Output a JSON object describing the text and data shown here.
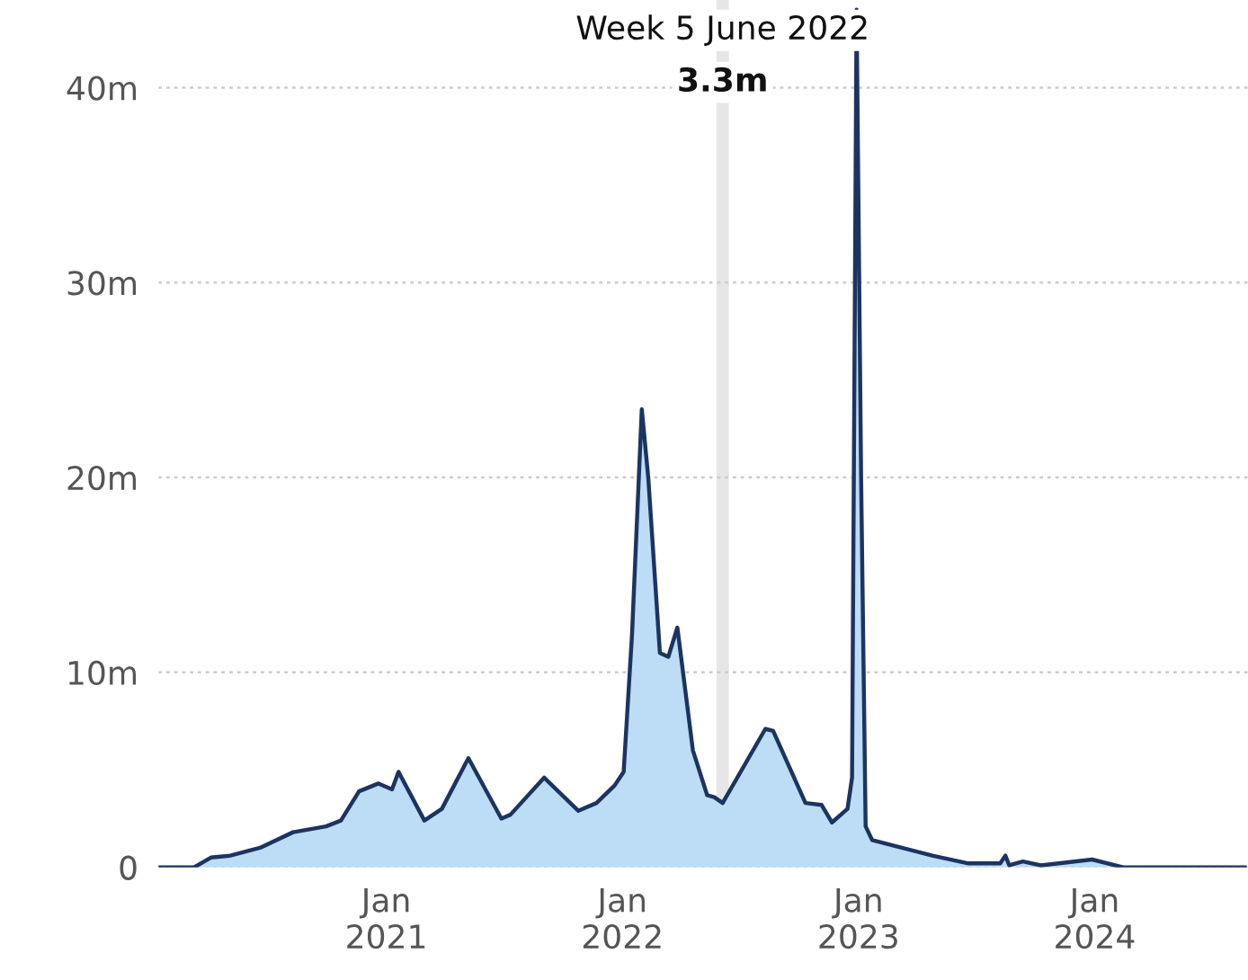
{
  "chart_data": {
    "type": "area",
    "x": [
      "2020-01-15",
      "2020-03-10",
      "2020-04-05",
      "2020-05-05",
      "2020-06-20",
      "2020-08-10",
      "2020-09-30",
      "2020-10-23",
      "2020-11-20",
      "2020-12-20",
      "2021-01-10",
      "2021-01-20",
      "2021-03-01",
      "2021-03-28",
      "2021-05-08",
      "2021-06-28",
      "2021-07-12",
      "2021-09-02",
      "2021-10-25",
      "2021-11-22",
      "2021-12-20",
      "2022-01-03",
      "2022-01-16",
      "2022-01-31",
      "2022-02-10",
      "2022-02-28",
      "2022-03-13",
      "2022-03-27",
      "2022-04-20",
      "2022-05-12",
      "2022-05-23",
      "2022-06-05",
      "2022-08-10",
      "2022-08-22",
      "2022-10-11",
      "2022-11-05",
      "2022-11-21",
      "2022-12-15",
      "2022-12-22",
      "2022-12-29",
      "2023-01-05",
      "2023-01-12",
      "2023-01-22",
      "2023-04-25",
      "2023-06-20",
      "2023-08-08",
      "2023-08-16",
      "2023-08-22",
      "2023-09-12",
      "2023-10-10",
      "2023-12-28",
      "2024-02-14",
      "2024-08-20"
    ],
    "series": [
      {
        "color": "#bddcf6",
        "values": [
          0,
          0,
          0.5,
          0.6,
          1.0,
          1.8,
          2.1,
          2.4,
          3.9,
          4.3,
          4.0,
          4.9,
          2.4,
          3.0,
          5.6,
          2.5,
          2.7,
          4.6,
          2.9,
          3.3,
          4.2,
          4.9,
          12,
          23.5,
          20,
          11,
          10.8,
          12.3,
          6,
          3.7,
          3.6,
          3.3,
          7.1,
          7.0,
          3.3,
          3.2,
          2.3,
          3.0,
          4.6,
          44,
          20,
          2.1,
          1.4,
          0.6,
          0.2,
          0.2,
          0.6,
          0.1,
          0.3,
          0.1,
          0.4,
          0,
          0
        ]
      }
    ],
    "xlim": [
      "2020-01-15",
      "2024-08-25"
    ],
    "xticks": [
      {
        "value": "2021-01-01",
        "label": "Jan\n2021"
      },
      {
        "value": "2022-01-01",
        "label": "Jan\n2022"
      },
      {
        "value": "2023-01-01",
        "label": "Jan\n2023"
      },
      {
        "value": "2024-01-01",
        "label": "Jan\n2024"
      }
    ],
    "ylim": [
      0,
      44.5
    ],
    "yticks": [
      0,
      {
        "value": 10,
        "label": "10m"
      },
      {
        "value": 20,
        "label": "20m"
      },
      {
        "value": 30,
        "label": "30m"
      },
      {
        "value": 40,
        "label": "40m"
      }
    ],
    "grid": "y",
    "ref_lines": [
      {
        "axis": "x",
        "value": "2022-06-05",
        "label": "Week 5 June 2022",
        "color": "#e6e6e6"
      }
    ],
    "annotations": [
      "3.3m"
    ]
  }
}
